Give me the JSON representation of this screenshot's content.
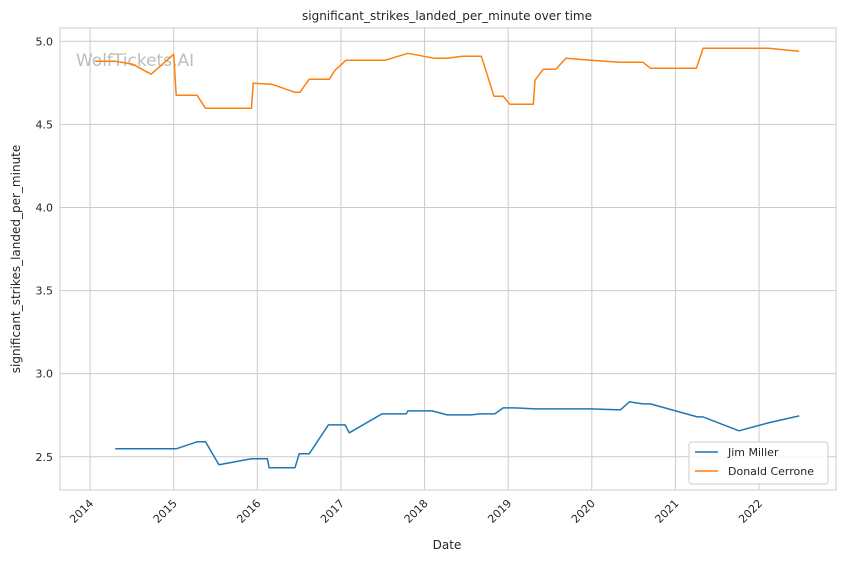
{
  "chart_data": {
    "type": "line",
    "title": "significant_strikes_landed_per_minute over time",
    "xlabel": "Date",
    "ylabel": "significant_strikes_landed_per_minute",
    "xlim": [
      2013.64,
      2022.92
    ],
    "ylim": [
      2.3,
      5.08
    ],
    "x_ticks": [
      2014,
      2015,
      2016,
      2017,
      2018,
      2019,
      2020,
      2021,
      2022
    ],
    "x_tick_labels": [
      "2014",
      "2015",
      "2016",
      "2017",
      "2018",
      "2019",
      "2020",
      "2021",
      "2022"
    ],
    "y_ticks": [
      2.5,
      3.0,
      3.5,
      4.0,
      4.5,
      5.0
    ],
    "y_tick_labels": [
      "2.5",
      "3.0",
      "3.5",
      "4.0",
      "4.5",
      "5.0"
    ],
    "grid": true,
    "legend_position": "lower-right",
    "watermark": "WolfTickets.AI",
    "series": [
      {
        "name": "Jim Miller",
        "color": "#1f77b4",
        "x": [
          2014.3,
          2015.03,
          2015.28,
          2015.38,
          2015.54,
          2015.93,
          2016.12,
          2016.14,
          2016.45,
          2016.5,
          2016.62,
          2016.85,
          2017.05,
          2017.1,
          2017.49,
          2017.78,
          2017.8,
          2018.09,
          2018.27,
          2018.55,
          2018.67,
          2018.84,
          2018.94,
          2019.08,
          2019.32,
          2019.98,
          2020.34,
          2020.45,
          2020.61,
          2020.7,
          2021.26,
          2021.33,
          2021.76,
          2022.11,
          2022.48
        ],
        "y": [
          2.548,
          2.548,
          2.59,
          2.59,
          2.452,
          2.488,
          2.488,
          2.434,
          2.434,
          2.518,
          2.518,
          2.692,
          2.692,
          2.644,
          2.758,
          2.758,
          2.776,
          2.776,
          2.752,
          2.752,
          2.758,
          2.758,
          2.794,
          2.794,
          2.788,
          2.788,
          2.782,
          2.831,
          2.818,
          2.818,
          2.74,
          2.74,
          2.656,
          2.704,
          2.746
        ]
      },
      {
        "name": "Donald Cerrone",
        "color": "#ff7f0e",
        "x": [
          2014.06,
          2014.3,
          2014.51,
          2014.73,
          2015.0,
          2015.03,
          2015.28,
          2015.38,
          2015.93,
          2015.95,
          2016.17,
          2016.45,
          2016.51,
          2016.62,
          2016.86,
          2016.93,
          2017.06,
          2017.53,
          2017.8,
          2018.11,
          2018.27,
          2018.45,
          2018.68,
          2018.83,
          2018.94,
          2019.02,
          2019.3,
          2019.32,
          2019.42,
          2019.57,
          2019.69,
          2019.99,
          2020.34,
          2020.61,
          2020.7,
          2021.25,
          2021.33,
          2022.11,
          2022.48
        ],
        "y": [
          4.88,
          4.88,
          4.862,
          4.802,
          4.922,
          4.675,
          4.675,
          4.597,
          4.597,
          4.748,
          4.742,
          4.693,
          4.693,
          4.772,
          4.772,
          4.826,
          4.886,
          4.886,
          4.928,
          4.898,
          4.898,
          4.91,
          4.91,
          4.669,
          4.669,
          4.621,
          4.621,
          4.766,
          4.832,
          4.832,
          4.898,
          4.886,
          4.874,
          4.874,
          4.838,
          4.838,
          4.958,
          4.958,
          4.94
        ]
      }
    ]
  }
}
